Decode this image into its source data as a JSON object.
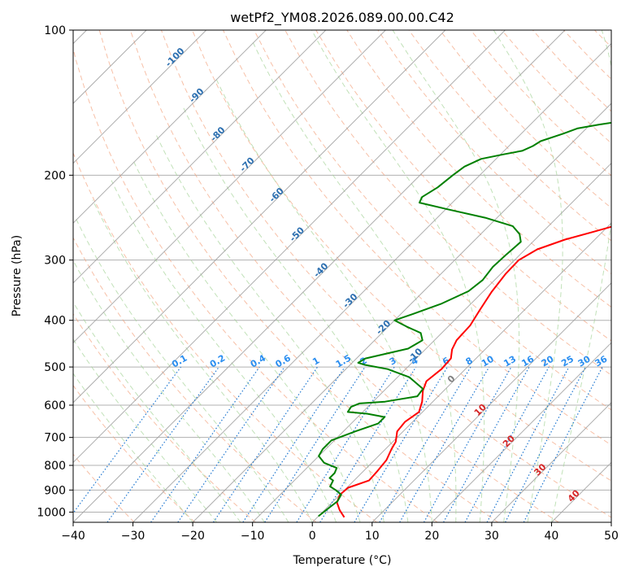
{
  "chart_data": {
    "type": "line",
    "title": "wetPf2_YM08.2026.089.00.00.C42",
    "xlabel": "Temperature (°C)",
    "ylabel": "Pressure (hPa)",
    "xlim": [
      -40,
      50
    ],
    "ylim": [
      1050,
      100
    ],
    "x_ticks": [
      "−40",
      "−30",
      "−20",
      "−10",
      "0",
      "10",
      "20",
      "30",
      "40",
      "50"
    ],
    "y_ticks": [
      "100",
      "200",
      "300",
      "400",
      "500",
      "600",
      "700",
      "800",
      "900",
      "1000"
    ],
    "colors": {
      "temperature": "#ff0000",
      "dewpoint": "#008000",
      "isotherm": "#a0a0a0",
      "dry_adiabat": "#f4a582",
      "moist_adiabat": "#a6d49a",
      "mixing_ratio": "#1f77d0",
      "isotherm_label": "#2c6fb0",
      "mixing_label": "#2a8ef0",
      "red_label": "#d62728",
      "zero_label": "#808080"
    },
    "series": [
      {
        "name": "Temperature",
        "points": [
          [
            4.5,
            1025
          ],
          [
            2.5,
            990
          ],
          [
            0.8,
            955
          ],
          [
            0.0,
            920
          ],
          [
            0.2,
            890
          ],
          [
            2.5,
            860
          ],
          [
            2.3,
            820
          ],
          [
            2.0,
            780
          ],
          [
            1.0,
            740
          ],
          [
            0.5,
            715
          ],
          [
            -1.0,
            680
          ],
          [
            -1.3,
            650
          ],
          [
            -0.6,
            620
          ],
          [
            -1.8,
            590
          ],
          [
            -3.5,
            560
          ],
          [
            -4.5,
            535
          ],
          [
            -4.0,
            505
          ],
          [
            -4.2,
            480
          ],
          [
            -5.5,
            460
          ],
          [
            -6.3,
            440
          ],
          [
            -6.5,
            410
          ],
          [
            -7.5,
            380
          ],
          [
            -8.5,
            350
          ],
          [
            -9.2,
            320
          ],
          [
            -9.3,
            300
          ],
          [
            -8.0,
            285
          ],
          [
            -5.0,
            272
          ],
          [
            -1.5,
            262
          ],
          [
            2.0,
            252
          ],
          [
            5.5,
            243
          ],
          [
            9.0,
            233
          ],
          [
            13.0,
            220
          ],
          [
            16.5,
            205
          ],
          [
            19.5,
            190
          ],
          [
            22.5,
            175
          ],
          [
            25.0,
            160
          ],
          [
            27.0,
            148
          ],
          [
            30.5,
            135
          ],
          [
            33.0,
            125
          ],
          [
            34.8,
            118
          ],
          [
            36.5,
            112
          ],
          [
            37.5,
            106
          ],
          [
            38.5,
            100
          ]
        ]
      },
      {
        "name": "Dewpoint",
        "points": [
          [
            0.0,
            1020
          ],
          [
            0.3,
            985
          ],
          [
            0.7,
            950
          ],
          [
            0.2,
            920
          ],
          [
            -1.5,
            900
          ],
          [
            -3.0,
            885
          ],
          [
            -3.5,
            860
          ],
          [
            -4.5,
            850
          ],
          [
            -4.5,
            830
          ],
          [
            -5.0,
            810
          ],
          [
            -8.0,
            790
          ],
          [
            -10.0,
            765
          ],
          [
            -10.5,
            740
          ],
          [
            -10.5,
            710
          ],
          [
            -8.0,
            680
          ],
          [
            -5.5,
            655
          ],
          [
            -5.5,
            635
          ],
          [
            -9.0,
            625
          ],
          [
            -12.5,
            620
          ],
          [
            -12.8,
            605
          ],
          [
            -12.0,
            595
          ],
          [
            -8.0,
            590
          ],
          [
            -3.5,
            575
          ],
          [
            -3.8,
            555
          ],
          [
            -8.0,
            525
          ],
          [
            -13.0,
            505
          ],
          [
            -17.5,
            495
          ],
          [
            -19.0,
            490
          ],
          [
            -18.5,
            480
          ],
          [
            -13.0,
            458
          ],
          [
            -12.0,
            440
          ],
          [
            -13.5,
            425
          ],
          [
            -17.0,
            412
          ],
          [
            -20.0,
            400
          ],
          [
            -18.0,
            388
          ],
          [
            -15.0,
            370
          ],
          [
            -12.5,
            348
          ],
          [
            -12.0,
            330
          ],
          [
            -12.5,
            310
          ],
          [
            -12.3,
            292
          ],
          [
            -12.0,
            275
          ],
          [
            -13.5,
            265
          ],
          [
            -16.0,
            255
          ],
          [
            -22.0,
            245
          ],
          [
            -30.0,
            235
          ],
          [
            -35.5,
            228
          ],
          [
            -36.0,
            222
          ],
          [
            -35.0,
            212
          ],
          [
            -34.5,
            200
          ],
          [
            -34.0,
            192
          ],
          [
            -32.5,
            185
          ],
          [
            -29.5,
            181
          ],
          [
            -27.0,
            178
          ],
          [
            -26.0,
            174
          ],
          [
            -25.5,
            170
          ],
          [
            -23.0,
            164
          ],
          [
            -21.5,
            160
          ],
          [
            -18.5,
            157
          ],
          [
            -16.0,
            155
          ],
          [
            -13.5,
            152
          ],
          [
            -12.0,
            150
          ],
          [
            -10.5,
            146
          ],
          [
            -9.5,
            142
          ],
          [
            -9.2,
            135
          ],
          [
            -9.0,
            128
          ],
          [
            -8.8,
            122
          ],
          [
            -8.0,
            118
          ],
          [
            -6.5,
            113
          ],
          [
            -4.5,
            109
          ],
          [
            -3.0,
            105
          ],
          [
            -1.8,
            100
          ]
        ]
      }
    ],
    "isotherm_labels": [
      {
        "text": "-100",
        "t": -100
      },
      {
        "text": "-90",
        "t": -90
      },
      {
        "text": "-80",
        "t": -80
      },
      {
        "text": "-70",
        "t": -70
      },
      {
        "text": "-60",
        "t": -60
      },
      {
        "text": "-50",
        "t": -50
      },
      {
        "text": "-40",
        "t": -40
      },
      {
        "text": "-30",
        "t": -30
      },
      {
        "text": "-20",
        "t": -20
      },
      {
        "text": "-10",
        "t": -10
      }
    ],
    "isotherm_labels_red": [
      {
        "text": "10",
        "t": 10
      },
      {
        "text": "20",
        "t": 20
      },
      {
        "text": "30",
        "t": 30
      },
      {
        "text": "40",
        "t": 40
      }
    ],
    "zero_label": {
      "text": "0",
      "t": 0
    },
    "mixing_ratio_labels": [
      "0.1",
      "0.2",
      "0.4",
      "0.6",
      "1",
      "1.5",
      "2",
      "3",
      "4",
      "6",
      "8",
      "10",
      "13",
      "16",
      "20",
      "25",
      "30",
      "36"
    ]
  }
}
